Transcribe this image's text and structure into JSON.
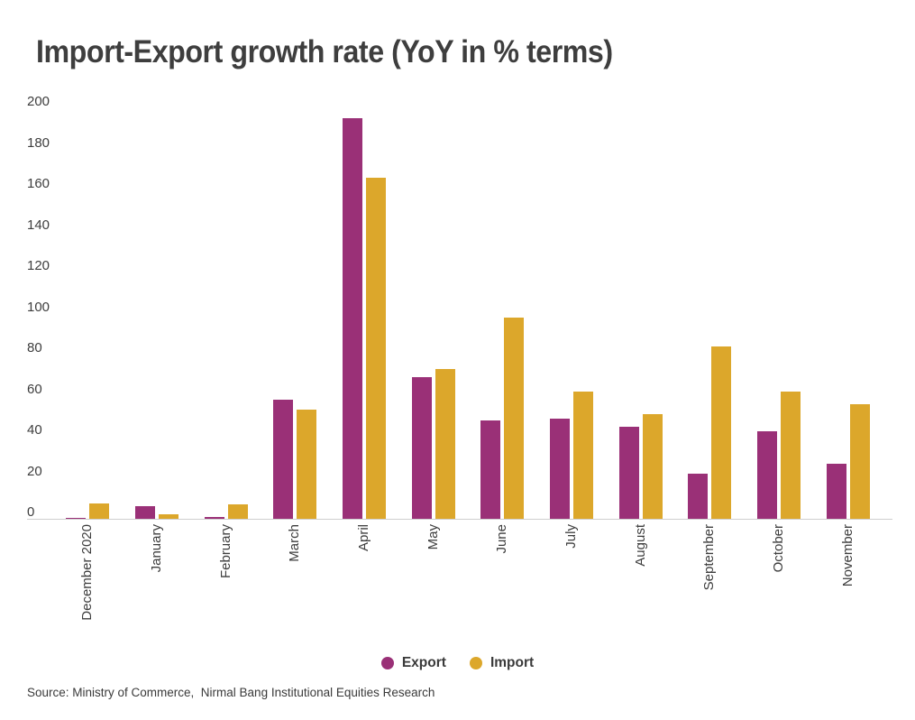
{
  "source_note": "Source: Ministry of Commerce,  Nirmal Bang Institutional Equities Research",
  "colors": {
    "export": "#9A3077",
    "import": "#DCA72B",
    "axis_line": "#CFCFCF",
    "text": "#3E3E3E"
  },
  "chart_data": {
    "type": "bar",
    "title": "Import-Export growth rate (YoY in % terms)",
    "categories": [
      "December 2020",
      "January",
      "February",
      "March",
      "April",
      "May",
      "June",
      "July",
      "August",
      "September",
      "October",
      "November"
    ],
    "series": [
      {
        "name": "Export",
        "color": "#9A3077",
        "values": [
          0.3,
          6,
          0.7,
          58,
          195,
          69,
          48,
          49,
          45,
          22,
          42.5,
          27
        ]
      },
      {
        "name": "Import",
        "color": "#DCA72B",
        "values": [
          7.5,
          2,
          7,
          53,
          166,
          73,
          98,
          62,
          51,
          84,
          62,
          56
        ]
      }
    ],
    "xlabel": "",
    "ylabel": "",
    "ylim": [
      0,
      200
    ],
    "ytick_step": 20,
    "grid": false,
    "legend_position": "bottom"
  }
}
